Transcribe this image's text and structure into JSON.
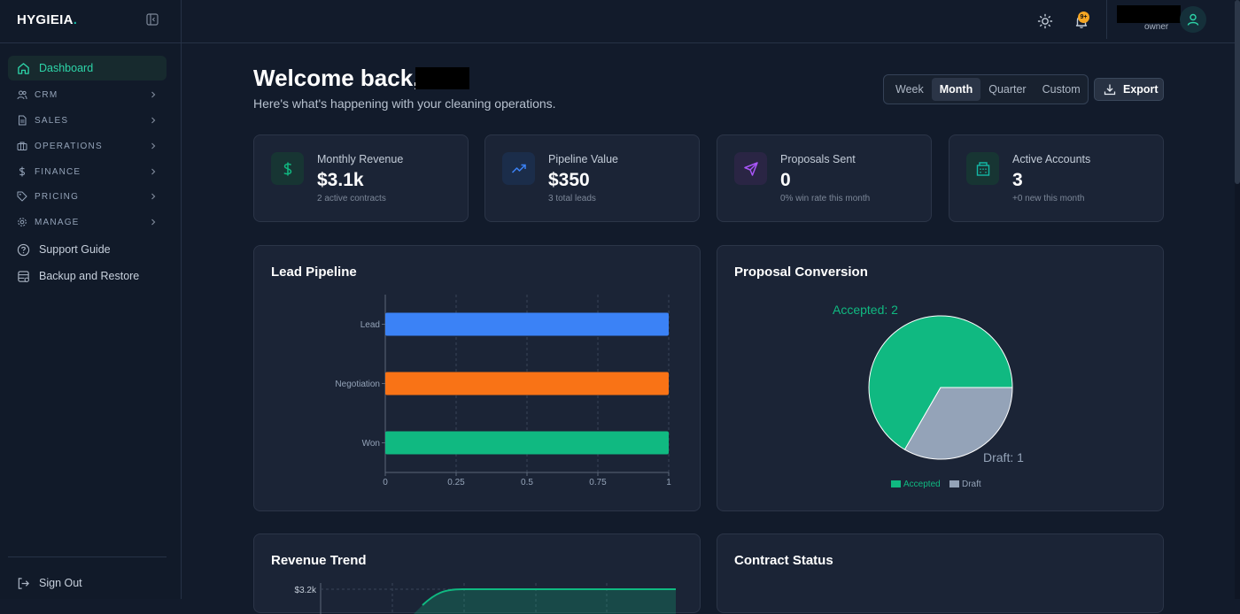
{
  "brand": {
    "name": "HYGIEIA",
    "dot": "."
  },
  "sidebar": {
    "items": [
      {
        "label": "Dashboard",
        "icon": "home-icon",
        "active": true
      },
      {
        "label": "CRM",
        "icon": "users-icon",
        "section": true
      },
      {
        "label": "SALES",
        "icon": "file-text-icon",
        "section": true
      },
      {
        "label": "OPERATIONS",
        "icon": "briefcase-icon",
        "section": true
      },
      {
        "label": "FINANCE",
        "icon": "dollar-icon",
        "section": true
      },
      {
        "label": "PRICING",
        "icon": "tag-icon",
        "section": true
      },
      {
        "label": "MANAGE",
        "icon": "gear-icon",
        "section": true
      },
      {
        "label": "Support Guide",
        "icon": "help-circle-icon"
      },
      {
        "label": "Backup and Restore",
        "icon": "database-icon"
      }
    ],
    "sign_out": "Sign Out"
  },
  "topbar": {
    "notification_badge": "9+",
    "user_role": "owner"
  },
  "header": {
    "welcome": "Welcome back,",
    "subtitle": "Here's what's happening with your cleaning operations."
  },
  "range": {
    "options": [
      "Week",
      "Month",
      "Quarter",
      "Custom"
    ],
    "selected": "Month"
  },
  "export_label": "Export",
  "stats": [
    {
      "label": "Monthly Revenue",
      "value": "$3.1k",
      "sub": "2 active contracts",
      "icon": "dollar-icon",
      "color": "#10b981"
    },
    {
      "label": "Pipeline Value",
      "value": "$350",
      "sub": "3 total leads",
      "icon": "trending-up-icon",
      "color": "#3b82f6"
    },
    {
      "label": "Proposals Sent",
      "value": "0",
      "sub": "0% win rate this month",
      "icon": "send-icon",
      "color": "#a855f7"
    },
    {
      "label": "Active Accounts",
      "value": "3",
      "sub": "+0 new this month",
      "icon": "building-icon",
      "color": "#14b8a6"
    }
  ],
  "cards": {
    "lead_pipeline": "Lead Pipeline",
    "proposal_conversion": "Proposal Conversion",
    "revenue_trend": "Revenue Trend",
    "contract_status": "Contract Status"
  },
  "chart_data": [
    {
      "type": "bar",
      "orientation": "horizontal",
      "title": "Lead Pipeline",
      "categories": [
        "Lead",
        "Negotiation",
        "Won"
      ],
      "values": [
        1,
        1,
        1
      ],
      "colors": [
        "#3b82f6",
        "#f97316",
        "#10b981"
      ],
      "xlim": [
        0,
        1
      ],
      "xticks": [
        "0",
        "0.25",
        "0.5",
        "0.75",
        "1"
      ],
      "grid": true
    },
    {
      "type": "pie",
      "title": "Proposal Conversion",
      "labels": [
        "Accepted",
        "Draft"
      ],
      "values": [
        2,
        1
      ],
      "slice_labels": [
        "Accepted: 2",
        "Draft: 1"
      ],
      "colors": [
        "#10b981",
        "#94a3b8"
      ],
      "legend": "bottom"
    },
    {
      "type": "area",
      "title": "Revenue Trend",
      "ytick_visible": "$3.2k",
      "color": "#10b981"
    }
  ]
}
